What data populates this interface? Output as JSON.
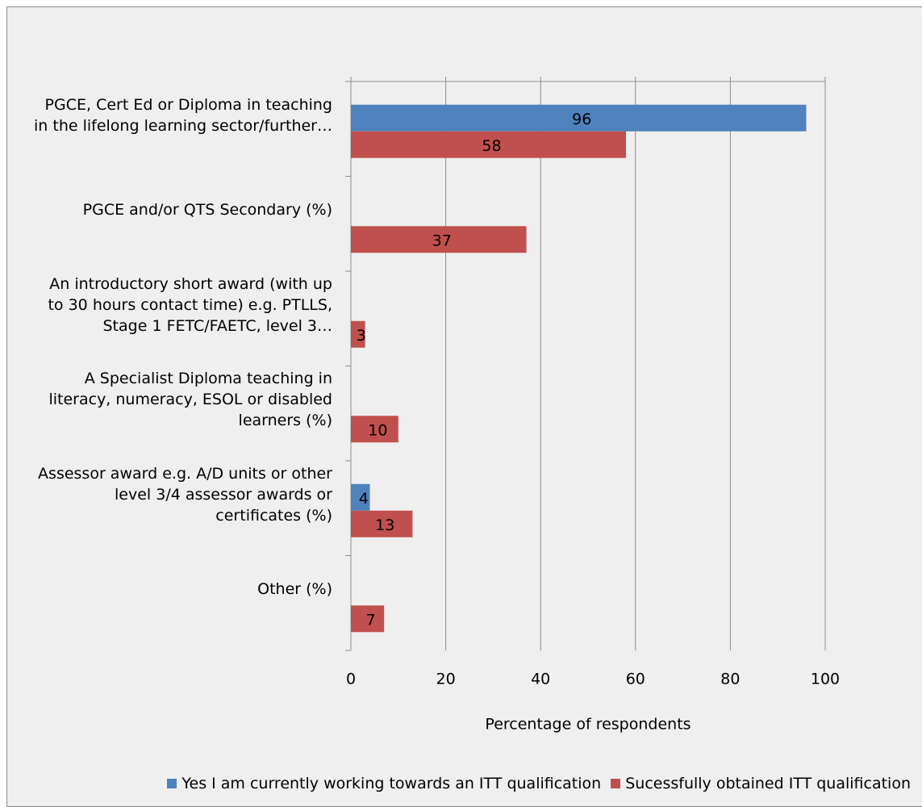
{
  "chart_data": {
    "type": "barh",
    "categories": [
      "PGCE, Cert Ed or Diploma in teaching in the lifelong learning sector/further…",
      "PGCE and/or QTS Secondary (%)",
      "An introductory short award (with up to 30 hours contact time) e.g. PTLLS, Stage 1 FETC/FAETC, level 3…",
      "A Specialist Diploma teaching in literacy, numeracy, ESOL or disabled learners (%)",
      "Assessor award e.g. A/D units or other level 3/4 assessor awards or certificates (%)",
      "Other (%)"
    ],
    "series": [
      {
        "name": "Yes I am currently working towards an ITT qualification",
        "color": "#4f81bd",
        "values": [
          96,
          null,
          null,
          null,
          4,
          null
        ]
      },
      {
        "name": "Sucessfully obtained ITT qualification",
        "color": "#c0504d",
        "values": [
          58,
          37,
          3,
          10,
          13,
          7
        ]
      }
    ],
    "xlabel": "Percentage of respondents",
    "xlim": [
      0,
      100
    ],
    "xticks": [
      0,
      20,
      40,
      60,
      80,
      100
    ],
    "grid": true,
    "legend": "bottom"
  }
}
